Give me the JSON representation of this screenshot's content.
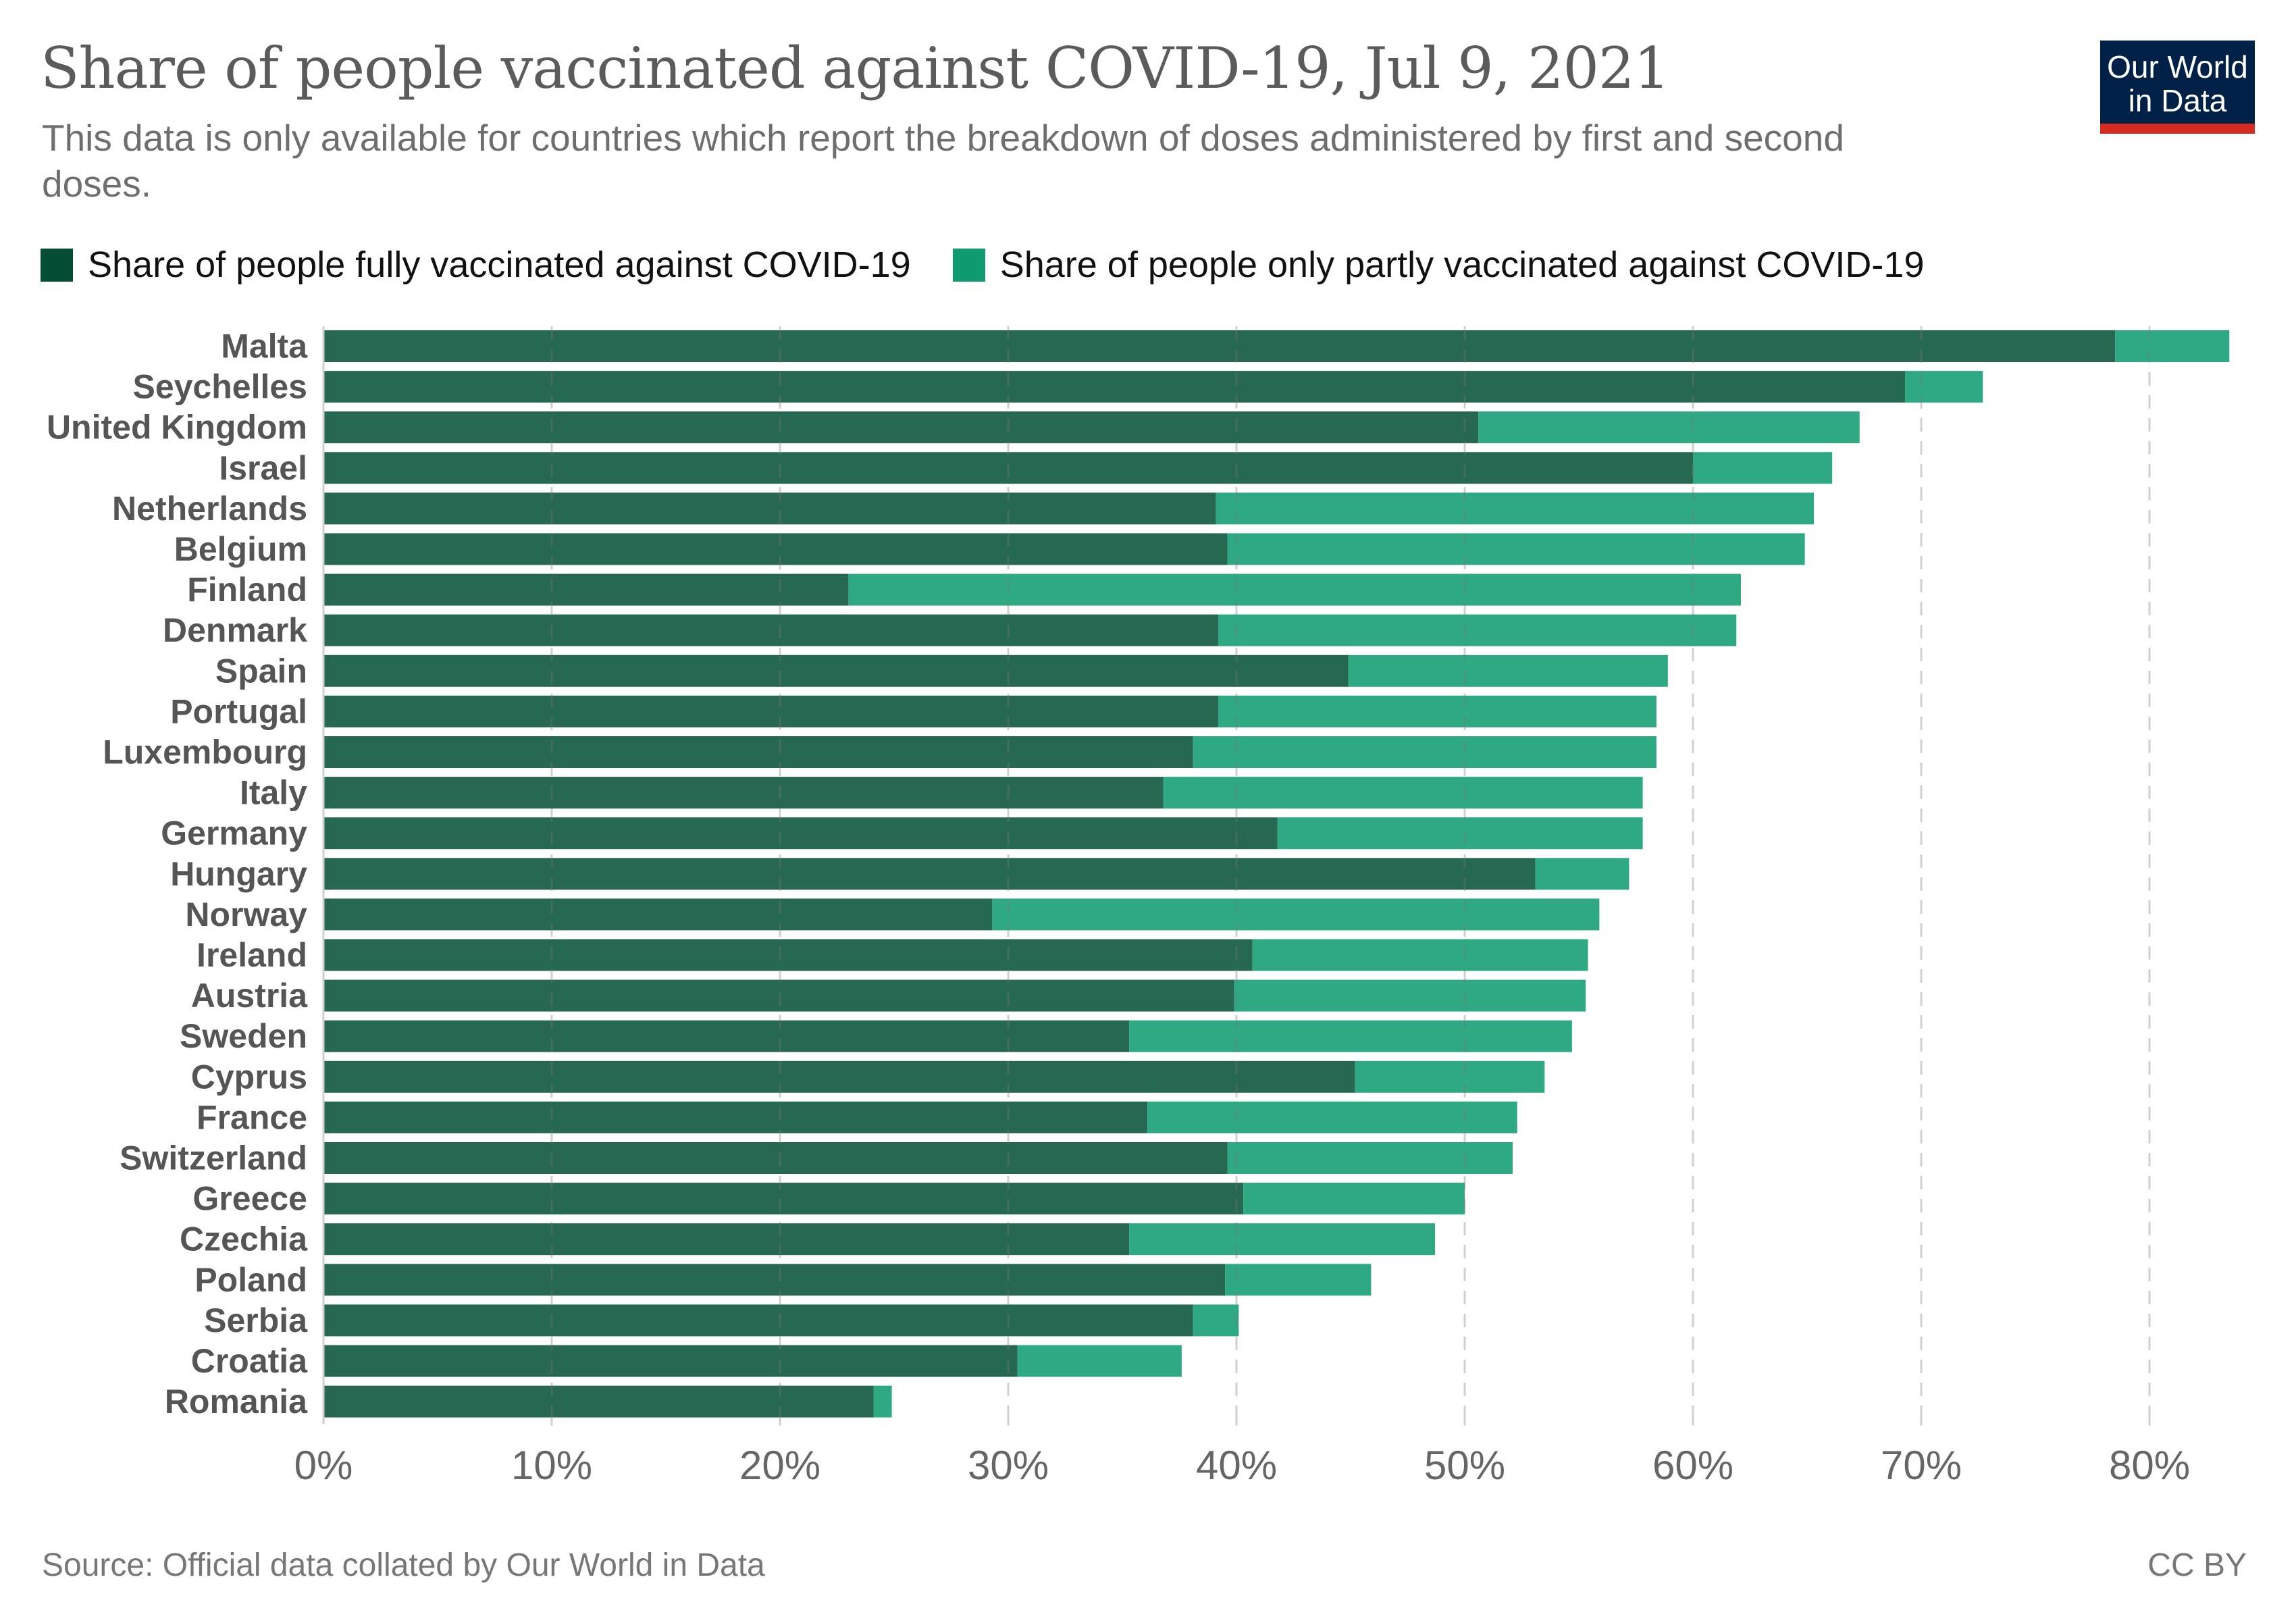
{
  "header": {
    "title": "Share of people vaccinated against COVID-19, Jul 9, 2021",
    "subtitle": "This data is only available for countries which report the breakdown of doses administered by first and second doses.",
    "logo_line1": "Our World",
    "logo_line2": "in Data"
  },
  "footer": {
    "source": "Source: Official data collated by Our World in Data",
    "license": "CC BY"
  },
  "colors": {
    "fully": "#276852",
    "partly": "#2ea984",
    "legend_fully": "#054d34",
    "legend_partly": "#0f9a70",
    "logo_bg": "#002147",
    "logo_stripe": "#d42b21"
  },
  "chart_data": {
    "type": "bar",
    "orientation": "horizontal",
    "stacked": true,
    "title": "Share of people vaccinated against COVID-19, Jul 9, 2021",
    "subtitle": "This data is only available for countries which report the breakdown of doses administered by first and second doses.",
    "xlabel": "",
    "ylabel": "",
    "xlim": [
      0,
      86
    ],
    "x_ticks": [
      0,
      10,
      20,
      30,
      40,
      50,
      60,
      70,
      80
    ],
    "x_tick_labels": [
      "0%",
      "10%",
      "20%",
      "30%",
      "40%",
      "50%",
      "60%",
      "70%",
      "80%"
    ],
    "grid": "vertical dashed",
    "legend_position": "top",
    "categories": [
      "Malta",
      "Seychelles",
      "United Kingdom",
      "Israel",
      "Netherlands",
      "Belgium",
      "Finland",
      "Denmark",
      "Spain",
      "Portugal",
      "Luxembourg",
      "Italy",
      "Germany",
      "Hungary",
      "Norway",
      "Ireland",
      "Austria",
      "Sweden",
      "Cyprus",
      "France",
      "Switzerland",
      "Greece",
      "Czechia",
      "Poland",
      "Serbia",
      "Croatia",
      "Romania"
    ],
    "series": [
      {
        "name": "Share of people fully vaccinated against COVID-19",
        "values": [
          78.5,
          69.3,
          50.6,
          60.0,
          39.1,
          39.6,
          23.0,
          39.2,
          44.9,
          39.2,
          38.1,
          36.8,
          41.8,
          53.1,
          29.3,
          40.7,
          39.9,
          35.3,
          45.2,
          36.1,
          39.6,
          40.3,
          35.3,
          39.5,
          38.1,
          30.4,
          24.1
        ]
      },
      {
        "name": "Share of people only partly vaccinated against COVID-19",
        "values": [
          5.0,
          3.4,
          16.7,
          6.1,
          26.2,
          25.3,
          39.1,
          22.7,
          14.0,
          19.2,
          20.3,
          21.0,
          16.0,
          4.1,
          26.6,
          14.7,
          15.4,
          19.4,
          8.3,
          16.2,
          12.5,
          9.7,
          13.4,
          6.4,
          2.0,
          7.2,
          0.8
        ]
      }
    ]
  }
}
